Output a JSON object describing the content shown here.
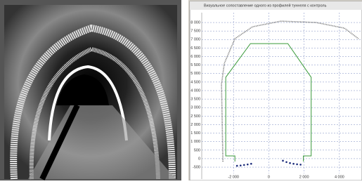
{
  "chart_data": {
    "type": "line",
    "title": "Визуальное сопоставление одного из профилей туннеля с контроль",
    "xlim": [
      -3800,
      5280
    ],
    "ylim": [
      -1200,
      8580
    ],
    "xticks": [
      {
        "value": -2000,
        "label": "-2 000"
      },
      0,
      {
        "value": 2000,
        "label": "2 000"
      },
      {
        "value": 4000,
        "label": "4 000"
      }
    ],
    "yticks": [
      {
        "value": 8000,
        "label": "8 000"
      },
      {
        "value": 7500,
        "label": "7 500"
      },
      {
        "value": 7000,
        "label": "7 000"
      },
      {
        "value": 6500,
        "label": "6 500"
      },
      {
        "value": 6000,
        "label": "6 000"
      },
      {
        "value": 5500,
        "label": "5 500"
      },
      {
        "value": 5000,
        "label": "5 000"
      },
      {
        "value": 4500,
        "label": "4 500"
      },
      {
        "value": 4000,
        "label": "4 000"
      },
      {
        "value": 3500,
        "label": "3 500"
      },
      {
        "value": 3000,
        "label": "3 000"
      },
      {
        "value": 2500,
        "label": "2 500"
      },
      {
        "value": 2000,
        "label": "2 000"
      },
      {
        "value": 1500,
        "label": "1 500"
      },
      {
        "value": 1000,
        "label": "1 000"
      },
      500,
      0,
      -500
    ],
    "grid": true,
    "series": [
      {
        "color": "#3a9a3a",
        "kind": "line",
        "x": [
          -1920,
          -1920,
          -2440,
          -2440,
          -1040,
          1080,
          2400,
          2400,
          1960,
          1960
        ],
        "values": [
          -170,
          160,
          160,
          4780,
          6760,
          6760,
          4780,
          160,
          160,
          -170
        ]
      },
      {
        "color": "#666666",
        "kind": "dotted",
        "x": [
          -2600,
          -2680,
          -2520,
          -1920,
          -920,
          680,
          2680,
          4280,
          5080
        ],
        "values": [
          -170,
          4370,
          5600,
          7050,
          7750,
          8080,
          8000,
          7670,
          7050
        ]
      },
      {
        "color": "#1a2a7a",
        "kind": "points",
        "x": [
          -1800,
          -1600,
          -1400,
          -1200,
          -1000,
          800,
          1000,
          1200,
          1400,
          1600,
          1800
        ],
        "values": [
          -420,
          -400,
          -370,
          -340,
          -300,
          -120,
          -200,
          -260,
          -300,
          -330,
          -350
        ]
      }
    ]
  }
}
